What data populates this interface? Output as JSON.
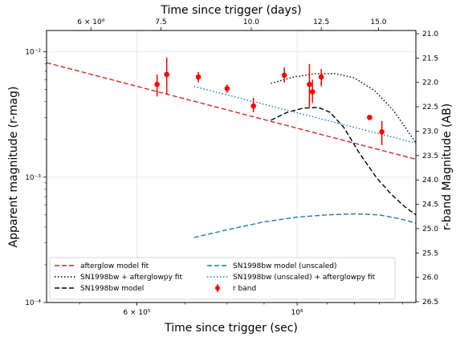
{
  "chart_data": {
    "type": "scatter",
    "xlabel": "Time since trigger (sec)",
    "ylabel": "Apparent magnitude (r-mag)",
    "top_xlabel": "Time since trigger (days)",
    "right_ylabel": "r-band Magnitude (AB)",
    "x_scale": "log",
    "y_scale": "log",
    "xlim": [
      450000,
      1460000
    ],
    "ylim": [
      0.0001,
      0.0148
    ],
    "right_ylim": [
      21.0,
      26.5
    ],
    "grid": true,
    "legend_location": "lower center",
    "x_ticks": [
      {
        "value": 600000,
        "label": "6 × 10⁵"
      },
      {
        "value": 1000000,
        "label": "10⁶"
      }
    ],
    "y_ticks": [
      {
        "value": 0.0001,
        "label": "10⁻⁴"
      },
      {
        "value": 0.001,
        "label": "10⁻³"
      },
      {
        "value": 0.01,
        "label": "10⁻²"
      }
    ],
    "top_x_ticks": [
      {
        "value": 6,
        "label": "6 × 10⁰"
      },
      {
        "value": 7.5,
        "label": "7.5"
      },
      {
        "value": 10,
        "label": "10.0"
      },
      {
        "value": 12.5,
        "label": "12.5"
      },
      {
        "value": 15,
        "label": "15.0"
      }
    ],
    "right_y_ticks": [
      "21.0",
      "21.5",
      "22.0",
      "22.5",
      "23.0",
      "23.5",
      "24.0",
      "24.5",
      "25.0",
      "25.5",
      "26.0",
      "26.5"
    ],
    "colors": {
      "red": "#d62728",
      "black": "#000000",
      "blue": "#1f77b4",
      "points": "#ff0000",
      "grid": "#e6e6e6"
    },
    "series": [
      {
        "name": "afterglow model fit",
        "style": "dashed",
        "color": "red",
        "x": [
          450000,
          1460000
        ],
        "y": [
          0.0082,
          0.00139
        ]
      },
      {
        "name": "SN1998bw + afterglowpy fit",
        "style": "dotted",
        "color": "black",
        "x": [
          920000,
          990000,
          1060000,
          1130000,
          1200000,
          1280000,
          1360000,
          1460000
        ],
        "y": [
          0.0056,
          0.0063,
          0.0067,
          0.0067,
          0.0062,
          0.0049,
          0.0034,
          0.00188
        ]
      },
      {
        "name": "SN1998bw model",
        "style": "dashed",
        "color": "black",
        "x": [
          920000,
          970000,
          1020000,
          1070000,
          1110000,
          1160000,
          1220000,
          1290000,
          1350000,
          1410000,
          1460000
        ],
        "y": [
          0.00285,
          0.0033,
          0.00356,
          0.0036,
          0.0033,
          0.0025,
          0.00155,
          0.00098,
          0.00073,
          0.00058,
          0.0005
        ],
        "draw_order": 0
      },
      {
        "name": "SN1998bw model (unscaled)",
        "style": "dashed",
        "color": "blue",
        "x": [
          720000,
          800000,
          900000,
          1000000,
          1100000,
          1200000,
          1300000,
          1400000,
          1460000
        ],
        "y": [
          0.00033,
          0.00038,
          0.00044,
          0.00048,
          0.0005,
          0.00051,
          0.0005,
          0.00046,
          0.00043
        ]
      },
      {
        "name": "SN1998bw (unscaled) + afterglowpy fit",
        "style": "dotted",
        "color": "blue",
        "x": [
          720000,
          1460000
        ],
        "y": [
          0.0053,
          0.00187
        ]
      },
      {
        "name": "r band",
        "style": "errorbar",
        "color": "points",
        "x": [
          640000,
          660000,
          730000,
          800000,
          870000,
          960000,
          1040000,
          1050000,
          1080000,
          1260000,
          1310000
        ],
        "y": [
          0.0055,
          0.0066,
          0.0063,
          0.0051,
          0.0037,
          0.0065,
          0.0055,
          0.0048,
          0.0063,
          0.003,
          0.0023
        ],
        "y_low": [
          0.0044,
          0.0046,
          0.0057,
          0.0047,
          0.0033,
          0.0057,
          0.0036,
          0.0039,
          0.0053,
          0.00285,
          0.0018
        ],
        "y_high": [
          0.0066,
          0.009,
          0.0069,
          0.0055,
          0.0043,
          0.0075,
          0.008,
          0.006,
          0.0073,
          0.00315,
          0.0028
        ]
      }
    ]
  }
}
